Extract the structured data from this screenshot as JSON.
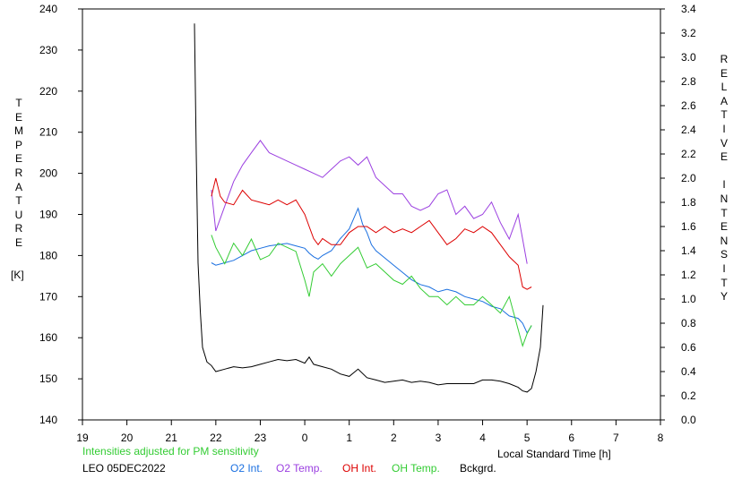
{
  "chart_data": {
    "type": "line",
    "left_axis": {
      "label": "TEMPERATURE",
      "unit": "[K]",
      "range": [
        140,
        240
      ],
      "ticks": [
        "140",
        "150",
        "160",
        "170",
        "180",
        "190",
        "200",
        "210",
        "220",
        "230",
        "240"
      ]
    },
    "right_axis": {
      "label": "RELATIVE INTENSITY",
      "range": [
        0.0,
        3.4
      ],
      "ticks": [
        "0.0",
        "0.2",
        "0.4",
        "0.6",
        "0.8",
        "1.0",
        "1.2",
        "1.4",
        "1.6",
        "1.8",
        "2.0",
        "2.2",
        "2.4",
        "2.6",
        "2.8",
        "3.0",
        "3.2",
        "3.4"
      ]
    },
    "x_axis": {
      "label": "Local Standard Time [h]",
      "range": [
        19,
        32
      ],
      "ticks": [
        "19",
        "20",
        "21",
        "22",
        "23",
        "0",
        "1",
        "2",
        "3",
        "4",
        "5",
        "6",
        "7",
        "8"
      ]
    },
    "note": "Intensities adjusted for PM sensitivity",
    "station_date": "LEO 05DEC2022",
    "series": [
      {
        "name": "O2 Int.",
        "color": "#1a6fe0",
        "axis": "right",
        "points": [
          [
            21.9,
            1.3
          ],
          [
            22.0,
            1.28
          ],
          [
            22.2,
            1.3
          ],
          [
            22.4,
            1.32
          ],
          [
            22.6,
            1.36
          ],
          [
            22.8,
            1.4
          ],
          [
            23.0,
            1.42
          ],
          [
            23.2,
            1.44
          ],
          [
            23.4,
            1.45
          ],
          [
            23.6,
            1.46
          ],
          [
            23.8,
            1.44
          ],
          [
            24.0,
            1.42
          ],
          [
            24.1,
            1.38
          ],
          [
            24.2,
            1.35
          ],
          [
            24.3,
            1.33
          ],
          [
            24.4,
            1.36
          ],
          [
            24.6,
            1.4
          ],
          [
            24.8,
            1.5
          ],
          [
            25.0,
            1.58
          ],
          [
            25.2,
            1.75
          ],
          [
            25.3,
            1.62
          ],
          [
            25.4,
            1.55
          ],
          [
            25.5,
            1.45
          ],
          [
            25.6,
            1.4
          ],
          [
            25.8,
            1.34
          ],
          [
            26.0,
            1.28
          ],
          [
            26.2,
            1.22
          ],
          [
            26.4,
            1.16
          ],
          [
            26.6,
            1.12
          ],
          [
            26.8,
            1.1
          ],
          [
            27.0,
            1.06
          ],
          [
            27.2,
            1.08
          ],
          [
            27.4,
            1.06
          ],
          [
            27.6,
            1.02
          ],
          [
            27.8,
            1.0
          ],
          [
            28.0,
            0.98
          ],
          [
            28.2,
            0.94
          ],
          [
            28.4,
            0.92
          ],
          [
            28.6,
            0.86
          ],
          [
            28.8,
            0.84
          ],
          [
            28.9,
            0.8
          ],
          [
            29.0,
            0.72
          ],
          [
            29.1,
            0.78
          ]
        ]
      },
      {
        "name": "O2 Temp.",
        "color": "#9b3fe0",
        "axis": "left",
        "points": [
          [
            21.9,
            196
          ],
          [
            22.0,
            186
          ],
          [
            22.2,
            192
          ],
          [
            22.4,
            198
          ],
          [
            22.6,
            202
          ],
          [
            22.8,
            205
          ],
          [
            23.0,
            208
          ],
          [
            23.2,
            205
          ],
          [
            23.4,
            204
          ],
          [
            23.6,
            203
          ],
          [
            23.8,
            202
          ],
          [
            24.0,
            201
          ],
          [
            24.2,
            200
          ],
          [
            24.4,
            199
          ],
          [
            24.6,
            201
          ],
          [
            24.8,
            203
          ],
          [
            25.0,
            204
          ],
          [
            25.2,
            202
          ],
          [
            25.4,
            204
          ],
          [
            25.6,
            199
          ],
          [
            25.8,
            197
          ],
          [
            26.0,
            195
          ],
          [
            26.2,
            195
          ],
          [
            26.4,
            192
          ],
          [
            26.6,
            191
          ],
          [
            26.8,
            192
          ],
          [
            27.0,
            195
          ],
          [
            27.2,
            196
          ],
          [
            27.4,
            190
          ],
          [
            27.6,
            192
          ],
          [
            27.8,
            189
          ],
          [
            28.0,
            190
          ],
          [
            28.2,
            193
          ],
          [
            28.4,
            188
          ],
          [
            28.6,
            184
          ],
          [
            28.8,
            190
          ],
          [
            29.0,
            178
          ]
        ]
      },
      {
        "name": "OH Int.",
        "color": "#dd0000",
        "axis": "right",
        "points": [
          [
            21.9,
            1.85
          ],
          [
            22.0,
            2.0
          ],
          [
            22.1,
            1.85
          ],
          [
            22.2,
            1.8
          ],
          [
            22.4,
            1.78
          ],
          [
            22.6,
            1.9
          ],
          [
            22.8,
            1.82
          ],
          [
            23.0,
            1.8
          ],
          [
            23.2,
            1.78
          ],
          [
            23.4,
            1.82
          ],
          [
            23.6,
            1.78
          ],
          [
            23.8,
            1.82
          ],
          [
            24.0,
            1.7
          ],
          [
            24.1,
            1.6
          ],
          [
            24.2,
            1.5
          ],
          [
            24.3,
            1.45
          ],
          [
            24.4,
            1.5
          ],
          [
            24.6,
            1.45
          ],
          [
            24.8,
            1.45
          ],
          [
            25.0,
            1.55
          ],
          [
            25.2,
            1.6
          ],
          [
            25.4,
            1.6
          ],
          [
            25.6,
            1.55
          ],
          [
            25.8,
            1.6
          ],
          [
            26.0,
            1.55
          ],
          [
            26.2,
            1.58
          ],
          [
            26.4,
            1.55
          ],
          [
            26.6,
            1.6
          ],
          [
            26.8,
            1.65
          ],
          [
            27.0,
            1.55
          ],
          [
            27.2,
            1.45
          ],
          [
            27.4,
            1.5
          ],
          [
            27.6,
            1.58
          ],
          [
            27.8,
            1.55
          ],
          [
            28.0,
            1.6
          ],
          [
            28.2,
            1.55
          ],
          [
            28.4,
            1.45
          ],
          [
            28.6,
            1.35
          ],
          [
            28.8,
            1.28
          ],
          [
            28.9,
            1.1
          ],
          [
            29.0,
            1.08
          ],
          [
            29.1,
            1.1
          ]
        ]
      },
      {
        "name": "OH Temp.",
        "color": "#33cc33",
        "axis": "left",
        "points": [
          [
            21.9,
            185
          ],
          [
            22.0,
            182
          ],
          [
            22.2,
            178
          ],
          [
            22.4,
            183
          ],
          [
            22.6,
            180
          ],
          [
            22.8,
            184
          ],
          [
            23.0,
            179
          ],
          [
            23.2,
            180
          ],
          [
            23.4,
            183
          ],
          [
            23.6,
            182
          ],
          [
            23.8,
            181
          ],
          [
            24.0,
            174
          ],
          [
            24.1,
            170
          ],
          [
            24.2,
            176
          ],
          [
            24.4,
            178
          ],
          [
            24.6,
            175
          ],
          [
            24.8,
            178
          ],
          [
            25.0,
            180
          ],
          [
            25.2,
            182
          ],
          [
            25.4,
            177
          ],
          [
            25.6,
            178
          ],
          [
            25.8,
            176
          ],
          [
            26.0,
            174
          ],
          [
            26.2,
            173
          ],
          [
            26.4,
            175
          ],
          [
            26.6,
            172
          ],
          [
            26.8,
            170
          ],
          [
            27.0,
            170
          ],
          [
            27.2,
            168
          ],
          [
            27.4,
            170
          ],
          [
            27.6,
            168
          ],
          [
            27.8,
            168
          ],
          [
            28.0,
            170
          ],
          [
            28.2,
            168
          ],
          [
            28.4,
            166
          ],
          [
            28.6,
            170
          ],
          [
            28.8,
            162
          ],
          [
            28.9,
            158
          ],
          [
            29.0,
            161
          ],
          [
            29.1,
            163
          ]
        ]
      },
      {
        "name": "Bckgrd.",
        "color": "#000000",
        "axis": "right",
        "points": [
          [
            21.52,
            3.28
          ],
          [
            21.56,
            2.2
          ],
          [
            21.6,
            1.3
          ],
          [
            21.65,
            0.9
          ],
          [
            21.7,
            0.6
          ],
          [
            21.8,
            0.48
          ],
          [
            21.9,
            0.45
          ],
          [
            22.0,
            0.4
          ],
          [
            22.2,
            0.42
          ],
          [
            22.4,
            0.44
          ],
          [
            22.6,
            0.43
          ],
          [
            22.8,
            0.44
          ],
          [
            23.0,
            0.46
          ],
          [
            23.2,
            0.48
          ],
          [
            23.4,
            0.5
          ],
          [
            23.6,
            0.49
          ],
          [
            23.8,
            0.5
          ],
          [
            24.0,
            0.47
          ],
          [
            24.1,
            0.52
          ],
          [
            24.2,
            0.46
          ],
          [
            24.4,
            0.44
          ],
          [
            24.6,
            0.42
          ],
          [
            24.8,
            0.38
          ],
          [
            25.0,
            0.36
          ],
          [
            25.2,
            0.42
          ],
          [
            25.4,
            0.35
          ],
          [
            25.6,
            0.33
          ],
          [
            25.8,
            0.31
          ],
          [
            26.0,
            0.32
          ],
          [
            26.2,
            0.33
          ],
          [
            26.4,
            0.31
          ],
          [
            26.6,
            0.32
          ],
          [
            26.8,
            0.31
          ],
          [
            27.0,
            0.29
          ],
          [
            27.2,
            0.3
          ],
          [
            27.4,
            0.3
          ],
          [
            27.6,
            0.3
          ],
          [
            27.8,
            0.3
          ],
          [
            28.0,
            0.33
          ],
          [
            28.2,
            0.33
          ],
          [
            28.4,
            0.32
          ],
          [
            28.6,
            0.3
          ],
          [
            28.8,
            0.27
          ],
          [
            28.9,
            0.24
          ],
          [
            29.0,
            0.23
          ],
          [
            29.1,
            0.26
          ],
          [
            29.2,
            0.4
          ],
          [
            29.3,
            0.6
          ],
          [
            29.36,
            0.95
          ]
        ]
      }
    ],
    "grid": false,
    "legend_placement": "bottom"
  }
}
